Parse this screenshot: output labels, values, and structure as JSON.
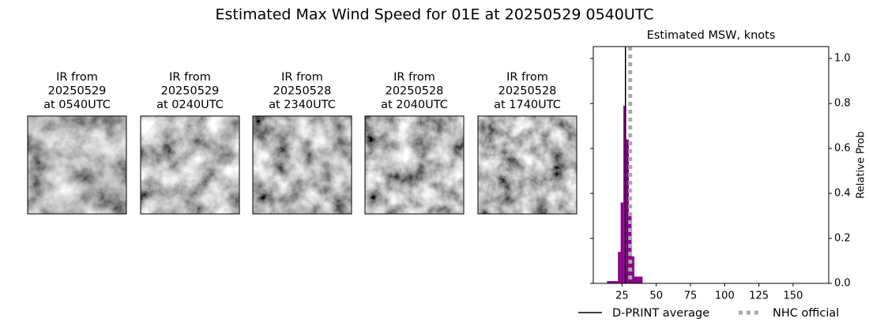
{
  "title": "Estimated Max Wind Speed for 01E at 20250529 0540UTC",
  "panels": [
    {
      "lines": [
        "IR from",
        "20250529",
        "at 0540UTC"
      ]
    },
    {
      "lines": [
        "IR from",
        "20250529",
        "at 0240UTC"
      ]
    },
    {
      "lines": [
        "IR from",
        "20250528",
        "at 2340UTC"
      ]
    },
    {
      "lines": [
        "IR from",
        "20250528",
        "at 2040UTC"
      ]
    },
    {
      "lines": [
        "IR from",
        "20250528",
        "at 1740UTC"
      ]
    }
  ],
  "chart_data": {
    "type": "histogram",
    "title": "Estimated MSW, knots",
    "y_label": "Relative Prob",
    "bins": [
      14,
      22,
      24,
      26,
      28,
      30,
      32,
      34,
      40
    ],
    "values": [
      0.01,
      0.14,
      0.36,
      0.79,
      0.64,
      0.31,
      0.12,
      0.03
    ],
    "color": "#8b008b",
    "xlim": [
      4,
      176
    ],
    "xticks": [
      25,
      50,
      75,
      100,
      125,
      150
    ],
    "ylim": [
      0,
      1.053
    ],
    "yticks": [
      {
        "value": 0,
        "label": "0.0"
      },
      {
        "value": 0.2,
        "label": "0.2"
      },
      {
        "value": 0.4,
        "label": "0.4"
      },
      {
        "value": 0.6,
        "label": "0.6"
      },
      {
        "value": 0.8,
        "label": "0.8"
      },
      {
        "value": 1,
        "label": "1.0"
      }
    ],
    "lines": [
      {
        "name": "D-PRINT average",
        "value": 27.5,
        "color": "#000000",
        "style": "solid"
      },
      {
        "name": "NHC official",
        "value": 31,
        "color": "#aaaaaa",
        "style": "dotted"
      }
    ]
  }
}
